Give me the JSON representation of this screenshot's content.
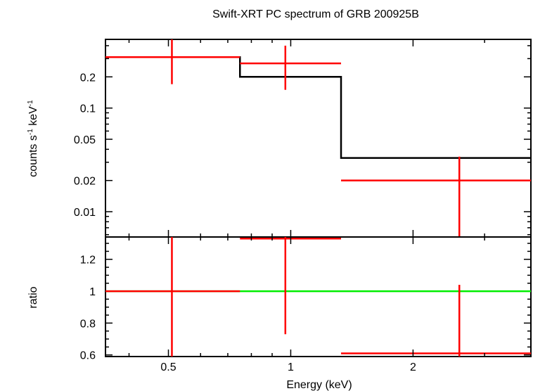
{
  "chart_data": {
    "type": "spectrum",
    "title": "Swift-XRT PC spectrum of GRB 200925B",
    "xlabel": "Energy (keV)",
    "x_scale": "log",
    "xlim": [
      0.35,
      3.9
    ],
    "x_ticks": [
      {
        "value": 0.5,
        "label": "0.5"
      },
      {
        "value": 1,
        "label": "1"
      },
      {
        "value": 2,
        "label": "2"
      }
    ],
    "panels": [
      {
        "name": "spectrum",
        "ylabel_parts": [
          "counts s",
          "-1",
          " keV",
          "-1"
        ],
        "y_scale": "log",
        "ylim": [
          0.0057,
          0.46
        ],
        "y_ticks": [
          {
            "value": 0.01,
            "label": "0.01"
          },
          {
            "value": 0.02,
            "label": "0.02"
          },
          {
            "value": 0.05,
            "label": "0.05"
          },
          {
            "value": 0.1,
            "label": "0.1"
          },
          {
            "value": 0.2,
            "label": "0.2"
          }
        ],
        "model": {
          "name": "model",
          "color": "#000000",
          "bins": [
            {
              "x_lo": 0.35,
              "x_hi": 0.75,
              "y": 0.31
            },
            {
              "x_lo": 0.75,
              "x_hi": 1.33,
              "y": 0.2
            },
            {
              "x_lo": 1.33,
              "x_hi": 3.9,
              "y": 0.033
            }
          ]
        },
        "data": {
          "name": "data",
          "color": "#ff0000",
          "points": [
            {
              "x": 0.51,
              "y": 0.31,
              "x_lo": 0.35,
              "x_hi": 0.75,
              "y_lo": 0.17,
              "y_hi": 0.46
            },
            {
              "x": 0.97,
              "y": 0.27,
              "x_lo": 0.75,
              "x_hi": 1.33,
              "y_lo": 0.15,
              "y_hi": 0.4
            },
            {
              "x": 2.6,
              "y": 0.02,
              "x_lo": 1.33,
              "x_hi": 3.9,
              "y_lo": 0.0057,
              "y_hi": 0.034
            }
          ]
        }
      },
      {
        "name": "ratio",
        "ylabel": "ratio",
        "y_scale": "linear",
        "ylim": [
          0.59,
          1.34
        ],
        "y_ticks": [
          {
            "value": 0.6,
            "label": "0.6"
          },
          {
            "value": 0.8,
            "label": "0.8"
          },
          {
            "value": 1,
            "label": "1"
          },
          {
            "value": 1.2,
            "label": "1.2"
          }
        ],
        "reference": {
          "name": "unity",
          "y": 1,
          "color": "#00ee00"
        },
        "data": {
          "name": "ratio",
          "color": "#ff0000",
          "points": [
            {
              "x": 0.51,
              "y": 1.0,
              "x_lo": 0.35,
              "x_hi": 0.75,
              "y_lo": 0.59,
              "y_hi": 1.34
            },
            {
              "x": 0.97,
              "y": 1.33,
              "x_lo": 0.75,
              "x_hi": 1.33,
              "y_lo": 0.73,
              "y_hi": 1.34
            },
            {
              "x": 2.6,
              "y": 0.61,
              "x_lo": 1.33,
              "x_hi": 3.9,
              "y_lo": 0.59,
              "y_hi": 1.04
            }
          ]
        }
      }
    ]
  }
}
